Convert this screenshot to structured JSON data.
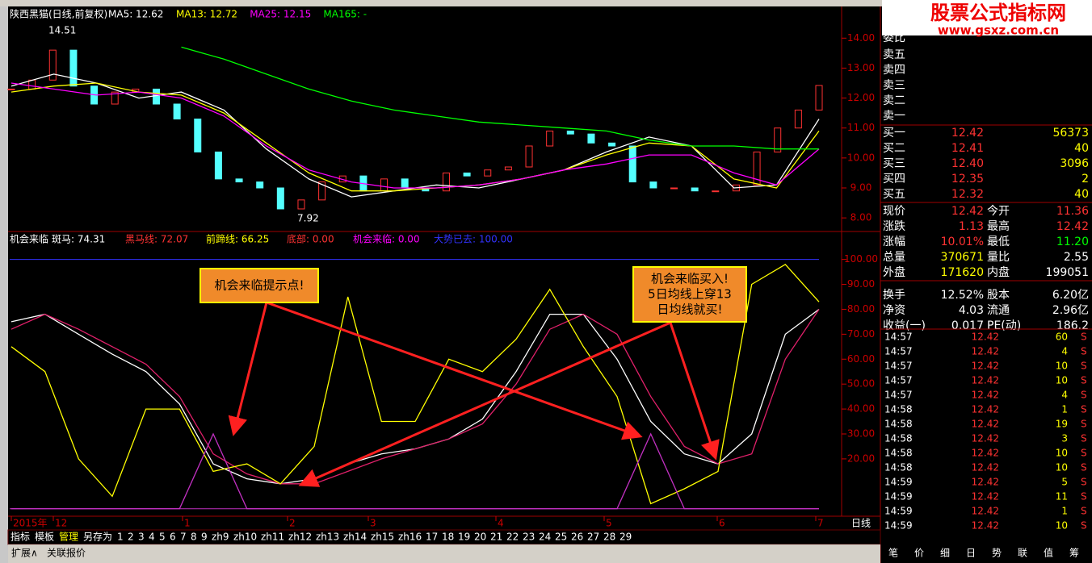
{
  "price_chart": {
    "title": "陕西黑猫(日线,前复权)",
    "ma_labels": [
      {
        "text": "MA5: 12.62",
        "color": "#ffffff"
      },
      {
        "text": "MA13: 12.72",
        "color": "#ffff00"
      },
      {
        "text": "MA25: 12.15",
        "color": "#ff00ff"
      },
      {
        "text": "MA165: -",
        "color": "#00ff00"
      }
    ],
    "ylim": [
      7.6,
      14.95
    ],
    "yticks": [
      {
        "value": 8,
        "label": "8.00"
      },
      {
        "value": 9,
        "label": "9.00"
      },
      {
        "value": 10,
        "label": "10.00"
      },
      {
        "value": 11,
        "label": "11.00"
      },
      {
        "value": 12,
        "label": "12.00"
      },
      {
        "value": 13,
        "label": "13.00"
      },
      {
        "value": 14,
        "label": "14.00"
      }
    ],
    "high_label": "14.51",
    "low_label": "7.92",
    "closes": [
      12.3,
      12.6,
      13.6,
      12.4,
      11.8,
      12.2,
      12.3,
      11.8,
      11.3,
      10.2,
      9.3,
      9.2,
      9.0,
      8.3,
      8.6,
      9.2,
      9.4,
      8.9,
      9.3,
      9.0,
      8.9,
      9.5,
      9.4,
      9.6,
      9.7,
      10.4,
      10.9,
      10.8,
      10.5,
      10.4,
      9.2,
      9.0,
      9.0,
      8.9,
      8.9,
      9.1,
      10.2,
      11.0,
      11.6,
      12.42
    ],
    "up_color": "#ff3232",
    "down_color": "#54ffff",
    "series": [
      {
        "name": "MA5",
        "color": "#ffffff",
        "values": [
          12.4,
          12.8,
          12.5,
          12.0,
          12.2,
          11.6,
          10.3,
          9.3,
          8.7,
          8.9,
          9.1,
          9.0,
          9.3,
          9.6,
          10.2,
          10.7,
          10.4,
          9.0,
          9.1,
          11.3
        ]
      },
      {
        "name": "MA13",
        "color": "#ffff00",
        "values": [
          12.2,
          12.4,
          12.5,
          12.2,
          12.1,
          11.5,
          10.5,
          9.5,
          8.9,
          8.9,
          9.0,
          9.1,
          9.3,
          9.6,
          10.1,
          10.5,
          10.4,
          9.3,
          9.0,
          10.9
        ]
      },
      {
        "name": "MA25",
        "color": "#ff00ff",
        "values": [
          12.5,
          12.3,
          12.1,
          12.2,
          12.0,
          11.4,
          10.4,
          9.6,
          9.2,
          9.0,
          9.0,
          9.1,
          9.3,
          9.6,
          9.8,
          10.1,
          10.1,
          9.5,
          9.1,
          10.3
        ]
      },
      {
        "name": "MA165",
        "color": "#00ff00",
        "values": [
          null,
          null,
          null,
          null,
          13.7,
          13.3,
          12.8,
          12.3,
          11.9,
          11.6,
          11.4,
          11.2,
          11.1,
          11.0,
          10.9,
          10.6,
          10.4,
          10.4,
          10.3,
          10.3
        ]
      }
    ]
  },
  "indicator_chart": {
    "title": "机会来临",
    "labels": [
      {
        "text": "斑马: 74.31",
        "color": "#ffffff"
      },
      {
        "text": "黑马线: 72.07",
        "color": "#ff3232"
      },
      {
        "text": "前蹄线: 66.25",
        "color": "#ffff00"
      },
      {
        "text": "底部: 0.00",
        "color": "#ff3232"
      },
      {
        "text": "机会来临: 0.00",
        "color": "#ff00ff"
      },
      {
        "text": "大势已去: 100.00",
        "color": "#3232ff"
      }
    ],
    "ylim": [
      -3,
      107
    ],
    "yticks": [
      {
        "value": 20,
        "label": "20.00"
      },
      {
        "value": 30,
        "label": "30.00"
      },
      {
        "value": 40,
        "label": "40.00"
      },
      {
        "value": 50,
        "label": "50.00"
      },
      {
        "value": 60,
        "label": "60.00"
      },
      {
        "value": 70,
        "label": "70.00"
      },
      {
        "value": 80,
        "label": "80.00"
      },
      {
        "value": 90,
        "label": "90.00"
      },
      {
        "value": 100,
        "label": "100.00"
      }
    ],
    "top_line": 100,
    "bottom_line": 0,
    "series": [
      {
        "name": "斑马",
        "color": "#ffffff",
        "values": [
          75,
          78,
          70,
          62,
          55,
          42,
          18,
          12,
          10,
          12,
          18,
          22,
          24,
          28,
          36,
          55,
          78,
          78,
          60,
          35,
          22,
          18,
          30,
          70,
          80
        ]
      },
      {
        "name": "黑马线",
        "color": "#e0206a",
        "values": [
          72,
          78,
          72,
          65,
          58,
          45,
          22,
          14,
          10,
          10,
          15,
          20,
          24,
          28,
          34,
          50,
          72,
          78,
          70,
          45,
          25,
          18,
          22,
          60,
          80
        ]
      },
      {
        "name": "前蹄线",
        "color": "#ffff00",
        "values": [
          65,
          55,
          20,
          5,
          40,
          40,
          15,
          18,
          10,
          25,
          85,
          35,
          35,
          60,
          55,
          68,
          88,
          65,
          45,
          2,
          8,
          15,
          90,
          98,
          83
        ]
      },
      {
        "name": "机会来临",
        "color": "#c030c0",
        "values": [
          0,
          0,
          0,
          0,
          0,
          0,
          30,
          0,
          0,
          0,
          0,
          0,
          0,
          0,
          0,
          0,
          0,
          0,
          0,
          30,
          0,
          0,
          0,
          0,
          0
        ]
      }
    ],
    "callouts": [
      "机会来临提示点!",
      "机会来临买入!",
      "5日均线上穿13",
      "日均线就买!"
    ]
  },
  "x_axis": {
    "labels": [
      "2015年",
      "12",
      "1",
      "2",
      "3",
      "4",
      "5",
      "6",
      "7"
    ],
    "period": "日线"
  },
  "bottom_tabs": [
    "指标",
    "模板",
    "管理",
    "另存为",
    "1",
    "2",
    "3",
    "4",
    "5",
    "6",
    "7",
    "8",
    "9",
    "zh9",
    "zh10",
    "zh11",
    "zh12",
    "zh13",
    "zh14",
    "zh15",
    "zh16",
    "17",
    "18",
    "19",
    "20",
    "21",
    "22",
    "23",
    "24",
    "25",
    "26",
    "27",
    "28",
    "29"
  ],
  "footer": [
    "扩展∧",
    "关联报价"
  ],
  "logo": {
    "title": "股票公式指标网",
    "url": "www.gsxz.com.cn"
  },
  "order_book": {
    "ratio_label": "委比",
    "sell": [
      "卖五",
      "卖四",
      "卖三",
      "卖二",
      "卖一"
    ],
    "buy": [
      [
        "买一",
        "12.42",
        "56373"
      ],
      [
        "买二",
        "12.41",
        "40"
      ],
      [
        "买三",
        "12.40",
        "3096"
      ],
      [
        "买四",
        "12.35",
        "2"
      ],
      [
        "买五",
        "12.32",
        "40"
      ]
    ]
  },
  "stats": [
    [
      "现价",
      "12.42",
      "今开",
      "11.36"
    ],
    [
      "涨跌",
      "1.13",
      "最高",
      "12.42"
    ],
    [
      "涨幅",
      "10.01%",
      "最低",
      "11.20"
    ],
    [
      "总量",
      "370671",
      "量比",
      "2.55"
    ],
    [
      "外盘",
      "171620",
      "内盘",
      "199051"
    ],
    [
      "换手",
      "12.52%",
      "股本",
      "6.20亿"
    ],
    [
      "净资",
      "4.03",
      "流通",
      "2.96亿"
    ],
    [
      "收益(一)",
      "0.017",
      "PE(动)",
      "186.2"
    ]
  ],
  "ticks": [
    [
      "14:57",
      "12.42",
      "60",
      "S"
    ],
    [
      "14:57",
      "12.42",
      "4",
      "S"
    ],
    [
      "14:57",
      "12.42",
      "10",
      "S"
    ],
    [
      "14:57",
      "12.42",
      "10",
      "S"
    ],
    [
      "14:57",
      "12.42",
      "4",
      "S"
    ],
    [
      "14:58",
      "12.42",
      "1",
      "S"
    ],
    [
      "14:58",
      "12.42",
      "19",
      "S"
    ],
    [
      "14:58",
      "12.42",
      "3",
      "S"
    ],
    [
      "14:58",
      "12.42",
      "10",
      "S"
    ],
    [
      "14:58",
      "12.42",
      "10",
      "S"
    ],
    [
      "14:59",
      "12.42",
      "5",
      "S"
    ],
    [
      "14:59",
      "12.42",
      "11",
      "S"
    ],
    [
      "14:59",
      "12.42",
      "1",
      "S"
    ],
    [
      "14:59",
      "12.42",
      "10",
      "S"
    ]
  ],
  "panel_tabs": [
    "笔",
    "价",
    "细",
    "日",
    "势",
    "联",
    "值",
    "筹"
  ]
}
